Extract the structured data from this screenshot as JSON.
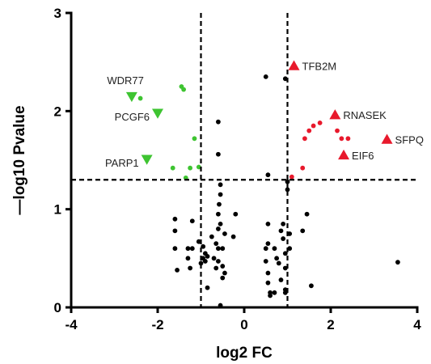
{
  "chart_data": {
    "type": "scatter",
    "title": "",
    "xlabel": "log2 FC",
    "ylabel": "—log10 Pvalue",
    "xlim": [
      -4,
      4
    ],
    "ylim": [
      0,
      3
    ],
    "xticks": [
      "-4",
      "-2",
      "0",
      "2",
      "4"
    ],
    "yticks": [
      "0",
      "1",
      "2",
      "3"
    ],
    "grid": false,
    "thresholds": {
      "x": [
        -1,
        1
      ],
      "y": 1.3
    },
    "colors": {
      "up": "#e8192c",
      "down": "#3ec431",
      "ns": "#000000"
    },
    "ns_points": [
      [
        -1.6,
        0.9
      ],
      [
        -1.6,
        0.78
      ],
      [
        -1.6,
        0.6
      ],
      [
        -1.55,
        0.38
      ],
      [
        -1.3,
        0.6
      ],
      [
        -1.3,
        0.5
      ],
      [
        -1.25,
        0.4
      ],
      [
        -1.2,
        0.6
      ],
      [
        -1.2,
        0.88
      ],
      [
        -1.05,
        0.67
      ],
      [
        -1.0,
        0.45
      ],
      [
        -0.95,
        0.62
      ],
      [
        -0.95,
        0.5
      ],
      [
        -0.9,
        0.55
      ],
      [
        -0.9,
        0.47
      ],
      [
        -0.85,
        0.52
      ],
      [
        -0.85,
        0.2
      ],
      [
        -0.75,
        0.72
      ],
      [
        -0.7,
        0.5
      ],
      [
        -0.65,
        0.4
      ],
      [
        -0.65,
        0.65
      ],
      [
        -0.6,
        0.6
      ],
      [
        -0.6,
        0.47
      ],
      [
        -0.6,
        0.8
      ],
      [
        -0.6,
        0.95
      ],
      [
        -0.58,
        1.05
      ],
      [
        -0.55,
        1.25
      ],
      [
        -0.55,
        1.15
      ],
      [
        -0.55,
        0.85
      ],
      [
        -0.5,
        0.42
      ],
      [
        -0.5,
        0.3
      ],
      [
        -0.5,
        0.6
      ],
      [
        -0.45,
        0.75
      ],
      [
        -0.55,
        0.02
      ],
      [
        -0.45,
        0.35
      ],
      [
        -0.6,
        1.56
      ],
      [
        -0.6,
        1.89
      ],
      [
        -0.25,
        0.72
      ],
      [
        -0.2,
        0.95
      ],
      [
        0.55,
        1.35
      ],
      [
        0.5,
        2.35
      ],
      [
        0.55,
        0.85
      ],
      [
        0.55,
        0.65
      ],
      [
        0.5,
        0.6
      ],
      [
        0.5,
        0.47
      ],
      [
        0.55,
        0.35
      ],
      [
        0.55,
        0.25
      ],
      [
        0.6,
        0.15
      ],
      [
        0.6,
        0.12
      ],
      [
        0.7,
        0.15
      ],
      [
        0.7,
        0.6
      ],
      [
        0.75,
        0.5
      ],
      [
        0.8,
        0.45
      ],
      [
        0.85,
        0.28
      ],
      [
        0.85,
        0.78
      ],
      [
        0.9,
        0.85
      ],
      [
        0.9,
        0.7
      ],
      [
        0.95,
        0.55
      ],
      [
        0.95,
        0.4
      ],
      [
        0.95,
        0.18
      ],
      [
        0.95,
        0.15
      ],
      [
        1.0,
        1.28
      ],
      [
        1.0,
        1.2
      ],
      [
        0.95,
        2.33
      ],
      [
        1.05,
        0.75
      ],
      [
        1.05,
        0.6
      ],
      [
        1.35,
        0.78
      ],
      [
        1.45,
        0.95
      ],
      [
        1.55,
        0.22
      ],
      [
        3.55,
        0.46
      ]
    ],
    "up_points": [
      [
        1.1,
        1.33
      ],
      [
        1.35,
        1.42
      ],
      [
        1.4,
        1.72
      ],
      [
        1.5,
        1.8
      ],
      [
        1.6,
        1.85
      ],
      [
        1.75,
        1.88
      ],
      [
        2.15,
        1.8
      ],
      [
        2.25,
        1.72
      ],
      [
        2.4,
        1.72
      ]
    ],
    "down_points": [
      [
        -2.4,
        2.13
      ],
      [
        -1.45,
        2.25
      ],
      [
        -1.4,
        2.22
      ],
      [
        -1.15,
        1.72
      ],
      [
        -1.25,
        1.42
      ],
      [
        -1.05,
        1.43
      ],
      [
        -1.65,
        1.42
      ],
      [
        -1.35,
        1.32
      ]
    ],
    "labeled_genes": [
      {
        "name": "TFB2M",
        "x": 1.15,
        "y": 2.46,
        "group": "up",
        "side": "right"
      },
      {
        "name": "RNASEK",
        "x": 2.1,
        "y": 1.96,
        "group": "up",
        "side": "right"
      },
      {
        "name": "EIF6",
        "x": 2.3,
        "y": 1.55,
        "group": "up",
        "side": "right"
      },
      {
        "name": "SFPQ",
        "x": 3.3,
        "y": 1.71,
        "group": "up",
        "side": "right"
      },
      {
        "name": "WDR77",
        "x": -2.6,
        "y": 2.15,
        "group": "down",
        "side": "above-left"
      },
      {
        "name": "PCGF6",
        "x": -2.0,
        "y": 1.98,
        "group": "down",
        "side": "left"
      },
      {
        "name": "PARP1",
        "x": -2.25,
        "y": 1.51,
        "group": "down",
        "side": "left"
      }
    ]
  }
}
